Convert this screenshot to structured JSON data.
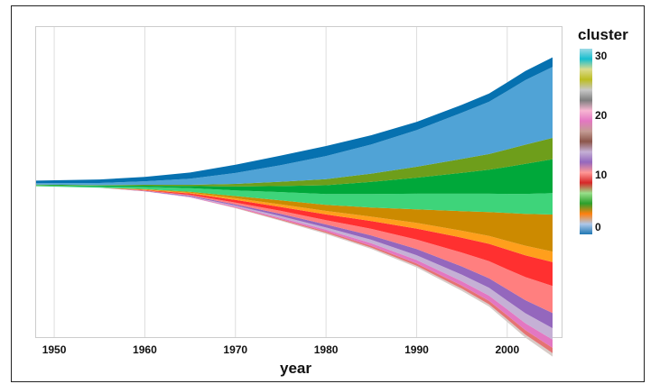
{
  "chart_data": {
    "type": "area",
    "subtype": "streamgraph",
    "xlabel": "year",
    "x_ticks": [
      "1950",
      "1960",
      "1970",
      "1980",
      "1990",
      "2000"
    ],
    "x_range": [
      1948,
      2006
    ],
    "legend": {
      "title": "cluster",
      "type": "colorbar",
      "range": [
        0,
        31
      ],
      "ticks": [
        "0",
        "10",
        "20",
        "30"
      ],
      "stops": [
        "#1f77b4",
        "#aec7e8",
        "#ff7f0e",
        "#2ca02c",
        "#98df8a",
        "#d62728",
        "#ff9896",
        "#9467bd",
        "#c5b0d5",
        "#8c564b",
        "#c49c94",
        "#e377c2",
        "#f7b6d2",
        "#7f7f7f",
        "#c7c7c7",
        "#bcbd22",
        "#dbdb8d",
        "#17becf",
        "#9edae5"
      ]
    },
    "grid": "vertical",
    "x": [
      1948,
      1955,
      1960,
      1965,
      1970,
      1975,
      1980,
      1985,
      1990,
      1995,
      1998,
      2000,
      2002,
      2005
    ],
    "series": [
      {
        "color": "#d7ccc8",
        "values": [
          0.0,
          0.0,
          0.0,
          0.0,
          0.1,
          0.2,
          0.3,
          0.3,
          0.4,
          0.5,
          0.5,
          0.6,
          0.7,
          0.8
        ]
      },
      {
        "color": "#e57373",
        "values": [
          0.0,
          0.0,
          0.0,
          0.0,
          0.1,
          0.2,
          0.3,
          0.4,
          0.5,
          0.7,
          0.8,
          0.9,
          1.0,
          1.2
        ]
      },
      {
        "color": "#e377c2",
        "values": [
          0.0,
          0.0,
          0.0,
          0.1,
          0.2,
          0.3,
          0.4,
          0.6,
          0.8,
          1.0,
          1.2,
          1.4,
          1.6,
          1.9
        ]
      },
      {
        "color": "#c5b0d5",
        "values": [
          0.0,
          0.0,
          0.0,
          0.1,
          0.2,
          0.4,
          0.5,
          0.8,
          1.1,
          1.5,
          1.8,
          2.0,
          2.3,
          2.6
        ]
      },
      {
        "color": "#9467bd",
        "values": [
          0.0,
          0.0,
          0.1,
          0.2,
          0.3,
          0.5,
          0.7,
          1.0,
          1.4,
          1.9,
          2.2,
          2.6,
          3.0,
          3.5
        ]
      },
      {
        "color": "#ff7f7f",
        "values": [
          0.0,
          0.0,
          0.1,
          0.2,
          0.4,
          0.7,
          1.0,
          1.5,
          2.2,
          3.2,
          3.9,
          4.6,
          5.3,
          6.2
        ]
      },
      {
        "color": "#ff3030",
        "values": [
          0.0,
          0.0,
          0.1,
          0.3,
          0.6,
          0.9,
          1.3,
          1.8,
          2.5,
          3.4,
          4.0,
          4.5,
          5.0,
          5.5
        ]
      },
      {
        "color": "#ff9f1c",
        "values": [
          0.0,
          0.0,
          0.1,
          0.2,
          0.4,
          0.6,
          0.8,
          1.0,
          1.3,
          1.6,
          1.8,
          2.0,
          2.2,
          2.4
        ]
      },
      {
        "color": "#cc8a00",
        "values": [
          0.0,
          0.0,
          0.1,
          0.2,
          0.5,
          0.9,
          1.4,
          2.1,
          3.1,
          4.5,
          5.5,
          6.4,
          7.3,
          8.5
        ]
      },
      {
        "color": "#3ed47a",
        "values": [
          0.2,
          0.3,
          0.5,
          0.8,
          1.3,
          1.9,
          2.5,
          3.1,
          3.6,
          4.0,
          4.2,
          4.4,
          4.6,
          4.9
        ]
      },
      {
        "color": "#00a83a",
        "values": [
          0.1,
          0.2,
          0.3,
          0.5,
          0.9,
          1.4,
          2.0,
          2.8,
          3.7,
          4.8,
          5.5,
          6.2,
          6.9,
          7.8
        ]
      },
      {
        "color": "#6e9e1b",
        "values": [
          0.1,
          0.1,
          0.2,
          0.3,
          0.6,
          1.0,
          1.4,
          1.9,
          2.5,
          3.2,
          3.6,
          4.0,
          4.4,
          4.9
        ]
      },
      {
        "color": "#50a3d6",
        "values": [
          0.3,
          0.5,
          0.8,
          1.4,
          2.5,
          3.8,
          5.3,
          6.7,
          8.4,
          10.6,
          12.0,
          13.4,
          14.8,
          16.3
        ]
      },
      {
        "color": "#0671b0",
        "values": [
          0.6,
          0.8,
          1.0,
          1.4,
          1.9,
          2.2,
          2.3,
          2.1,
          1.9,
          1.8,
          1.9,
          2.0,
          2.1,
          2.2
        ]
      }
    ]
  }
}
